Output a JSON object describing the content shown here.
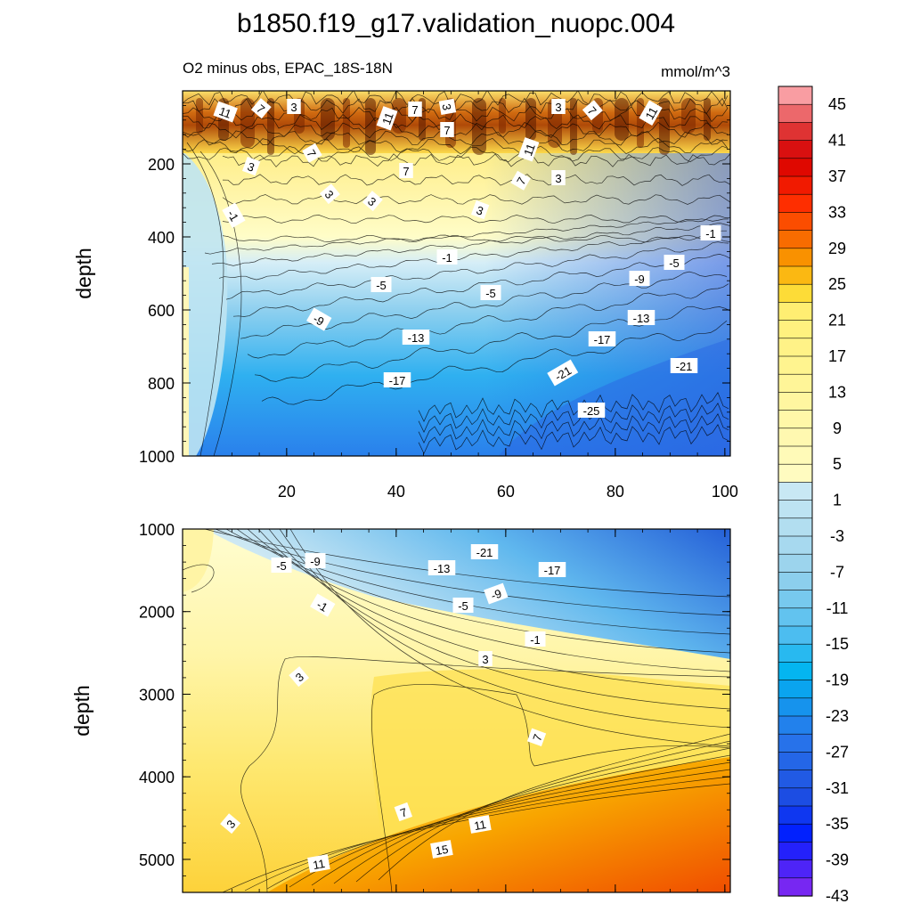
{
  "chart_data": {
    "type": "heatmap",
    "title": "b1850.f19_g17.validation_nuopc.004",
    "subtitle_left": "O2 minus obs, EPAC_18S-18N",
    "subtitle_right": "mmol/m^3",
    "ylabel": "depth",
    "xlim": [
      1,
      101
    ],
    "x_ticks": [
      "20",
      "40",
      "60",
      "80",
      "100"
    ],
    "top_panel": {
      "ylim": [
        0,
        1000
      ],
      "y_ticks": [
        "200",
        "400",
        "600",
        "800",
        "1000"
      ],
      "contour_labels": [
        "11",
        "7",
        "3",
        "11",
        "7",
        "3",
        "7",
        "11",
        "3",
        "7",
        "11",
        "3",
        "7",
        "3",
        "3",
        "-1",
        "3",
        "7",
        "7",
        "3",
        "-1",
        "-1",
        "-5",
        "-5",
        "-9",
        "-5",
        "-9",
        "-13",
        "-13",
        "-17",
        "-17",
        "-21",
        "-21",
        "-25"
      ]
    },
    "bottom_panel": {
      "ylim": [
        1000,
        5400
      ],
      "y_ticks": [
        "1000",
        "2000",
        "3000",
        "4000",
        "5000"
      ],
      "contour_labels": [
        "-5",
        "-9",
        "-21",
        "-13",
        "-17",
        "-9",
        "-1",
        "-5",
        "-1",
        "3",
        "3",
        "7",
        "3",
        "7",
        "11",
        "15",
        "11"
      ]
    },
    "colorbar": {
      "levels": [
        45,
        43,
        41,
        39,
        37,
        35,
        33,
        31,
        29,
        27,
        25,
        23,
        21,
        19,
        17,
        15,
        13,
        11,
        9,
        7,
        5,
        3,
        1,
        -1,
        -3,
        -5,
        -7,
        -9,
        -11,
        -13,
        -15,
        -17,
        -19,
        -21,
        -23,
        -25,
        -27,
        -29,
        -31,
        -33,
        -35,
        -37,
        -39,
        -41,
        -43,
        -45
      ],
      "tick_labels": [
        "45",
        "41",
        "37",
        "33",
        "29",
        "25",
        "21",
        "17",
        "13",
        "9",
        "5",
        "1",
        "-3",
        "-7",
        "-11",
        "-15",
        "-19",
        "-23",
        "-27",
        "-31",
        "-35",
        "-39",
        "-43"
      ]
    }
  },
  "colors": {
    "deep_negative": "#2f6fe0",
    "mid_negative": "#00b4f0",
    "light_negative": "#bfe4f2",
    "near_zero": "#fffdc2",
    "light_positive": "#fde660",
    "mid_positive": "#f6a800",
    "strong_positive": "#e22a00"
  }
}
